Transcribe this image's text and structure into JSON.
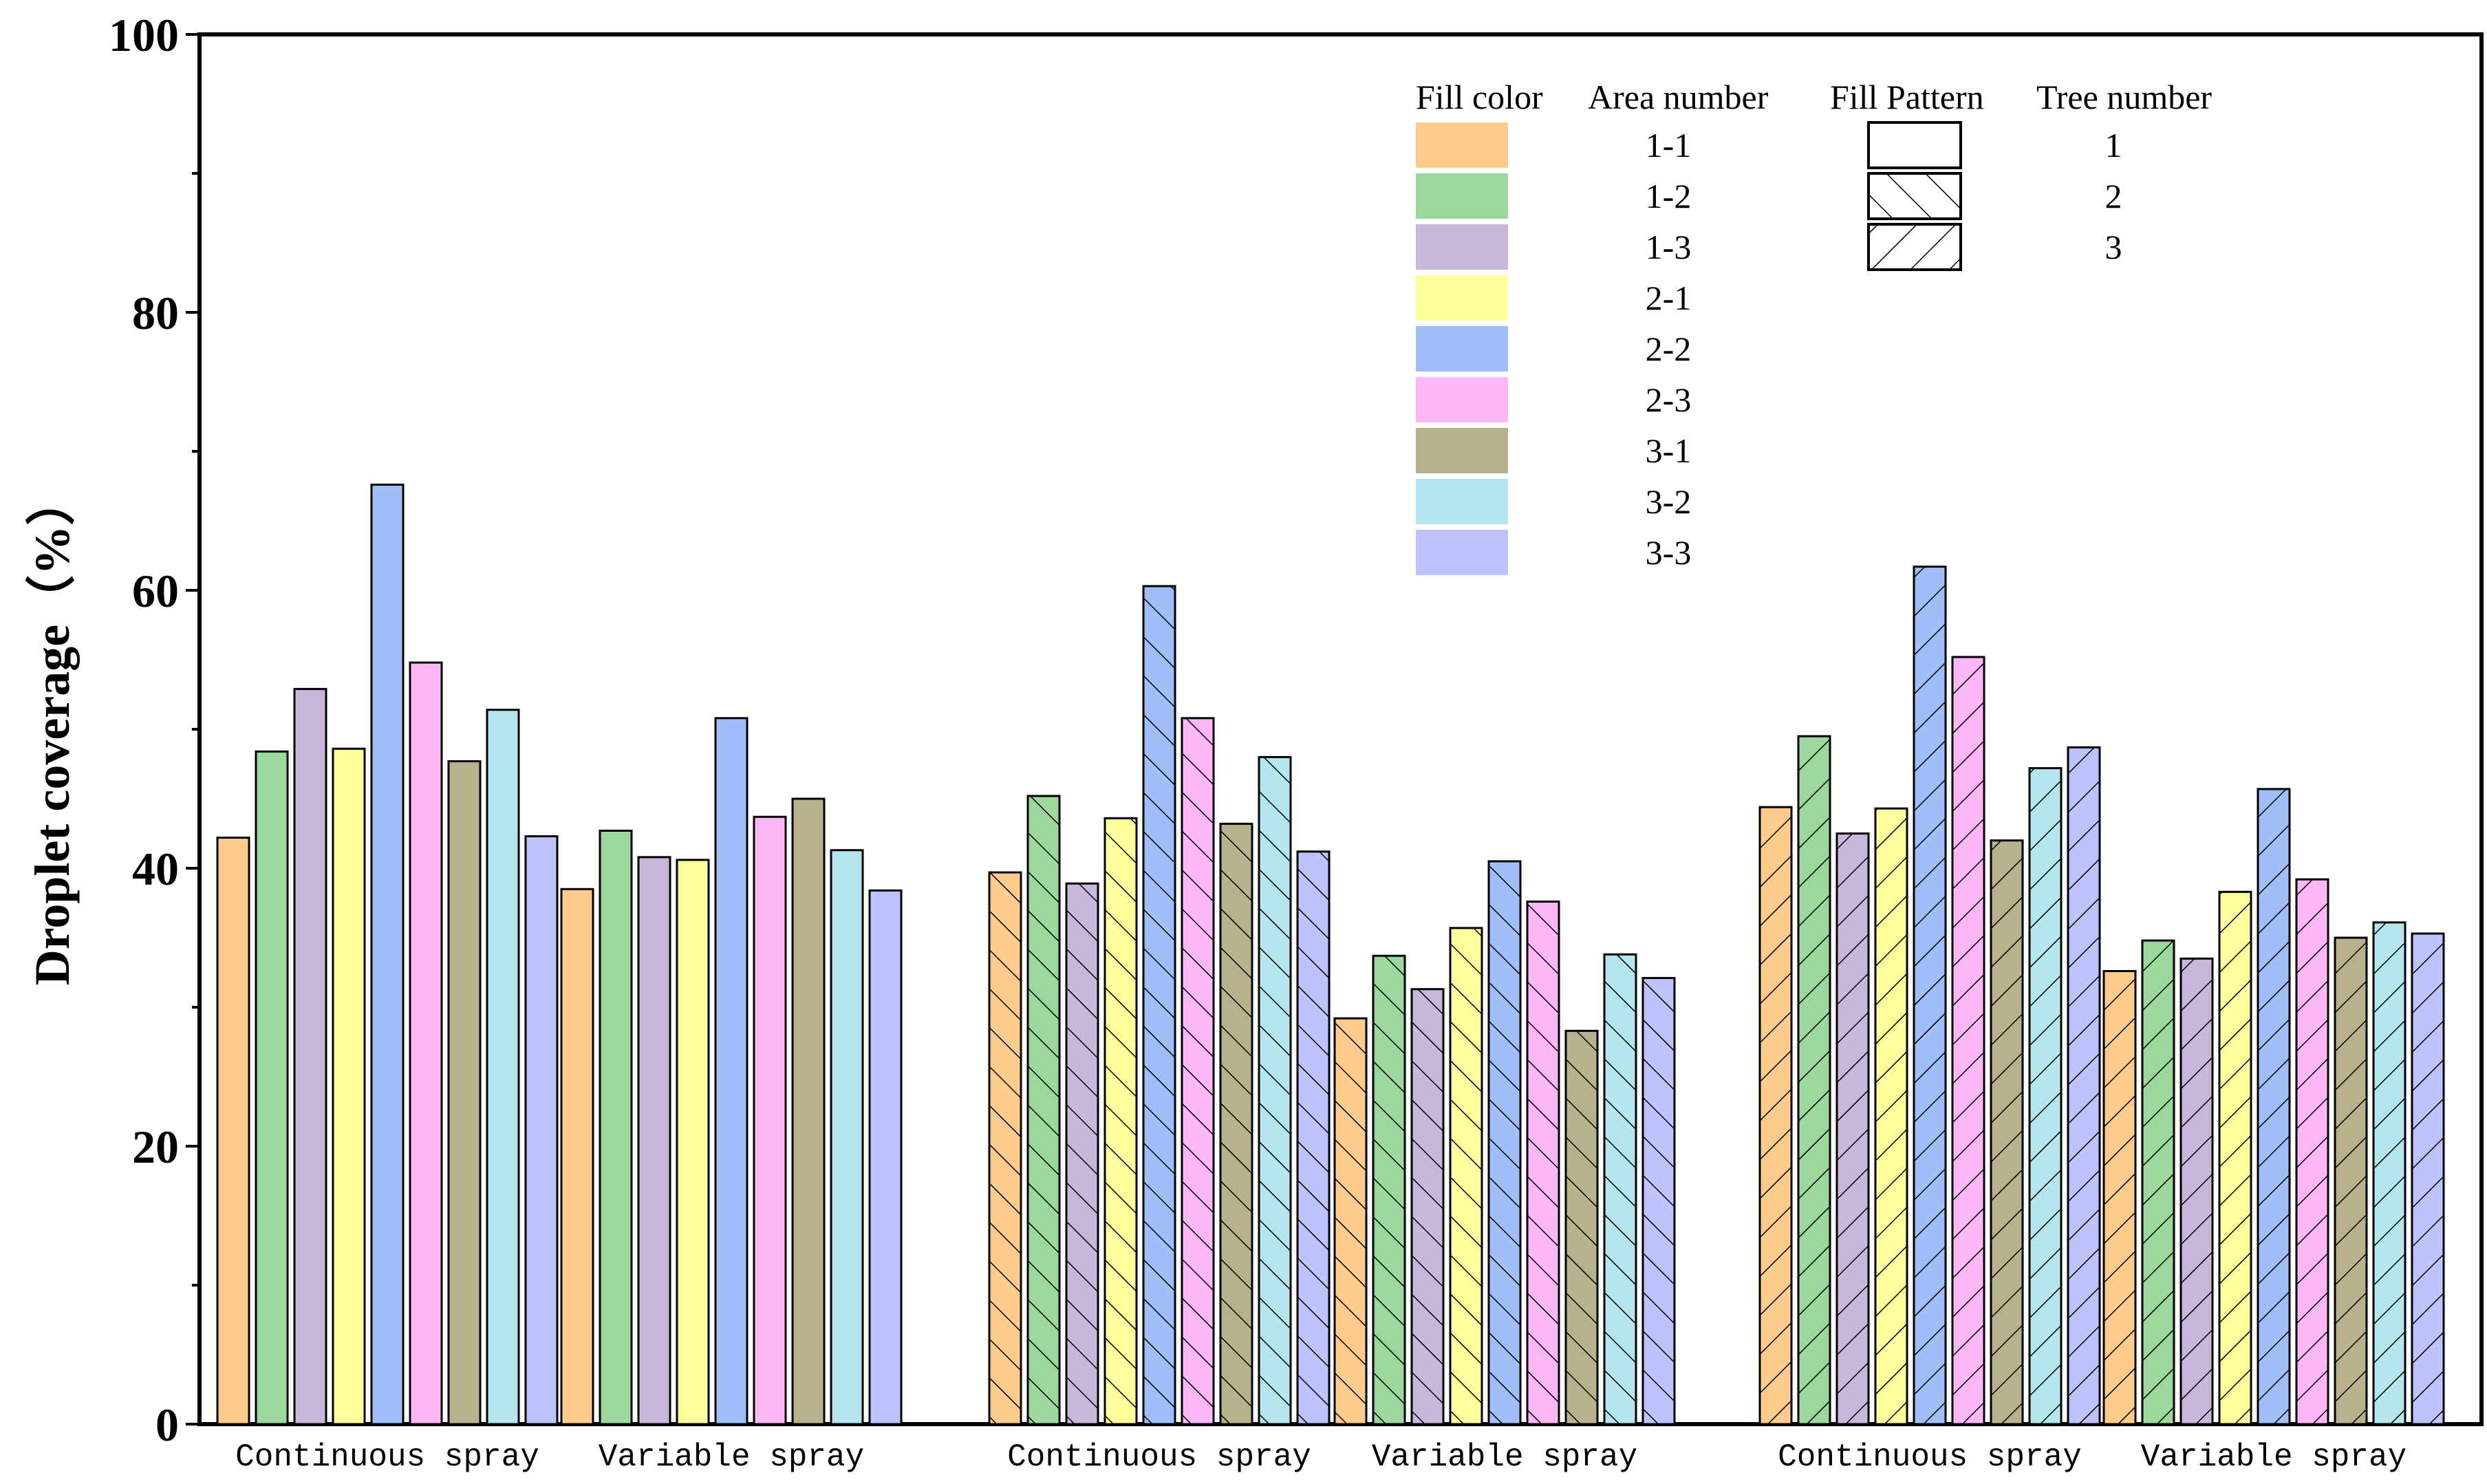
{
  "chart_data": {
    "type": "bar",
    "title": "",
    "xlabel": "",
    "ylabel": "Droplet coverage（%）",
    "ylim": [
      0,
      100
    ],
    "yticks": [
      "0",
      "20",
      "40",
      "60",
      "80",
      "100"
    ],
    "categories": [
      "Continuous spray",
      "Variable spray",
      "Continuous spray",
      "Variable spray",
      "Continuous spray",
      "Variable spray"
    ],
    "areas": [
      "1-1",
      "1-2",
      "1-3",
      "2-1",
      "2-2",
      "2-3",
      "3-1",
      "3-2",
      "3-3"
    ],
    "tree_of_group": [
      1,
      1,
      2,
      2,
      3,
      3
    ],
    "series": [
      {
        "name": "1-1",
        "color": "#FFCC8E",
        "values": [
          42.2,
          38.5,
          39.7,
          29.2,
          44.4,
          32.6
        ]
      },
      {
        "name": "1-2",
        "color": "#9CD79E",
        "values": [
          48.4,
          42.7,
          45.2,
          33.7,
          49.5,
          34.8
        ]
      },
      {
        "name": "1-3",
        "color": "#C7B7DA",
        "values": [
          52.9,
          40.8,
          38.9,
          31.3,
          42.5,
          33.5
        ]
      },
      {
        "name": "2-1",
        "color": "#FFFF9E",
        "values": [
          48.6,
          40.6,
          43.6,
          35.7,
          44.3,
          38.3
        ]
      },
      {
        "name": "2-2",
        "color": "#A0BEF8",
        "values": [
          67.6,
          50.8,
          60.3,
          40.5,
          61.7,
          45.7
        ]
      },
      {
        "name": "2-3",
        "color": "#FFB7F7",
        "values": [
          54.8,
          43.7,
          50.8,
          37.6,
          55.2,
          39.2
        ]
      },
      {
        "name": "3-1",
        "color": "#B6B28E",
        "values": [
          47.7,
          45.0,
          43.2,
          28.3,
          42.0,
          35.0
        ]
      },
      {
        "name": "3-2",
        "color": "#B4E6EE",
        "values": [
          51.4,
          41.3,
          48.0,
          33.8,
          47.2,
          36.1
        ]
      },
      {
        "name": "3-3",
        "color": "#BEC3FE",
        "values": [
          42.3,
          38.4,
          41.2,
          32.1,
          48.7,
          35.3
        ]
      }
    ],
    "legend": {
      "position": "top-right",
      "headers": {
        "fill_color": "Fill color",
        "area_number": "Area number",
        "fill_pattern": "Fill Pattern",
        "tree_number": "Tree number"
      },
      "tree_entries": [
        {
          "label": "1",
          "pattern": "none"
        },
        {
          "label": "2",
          "pattern": "forward-diagonal"
        },
        {
          "label": "3",
          "pattern": "backward-diagonal"
        }
      ]
    }
  }
}
